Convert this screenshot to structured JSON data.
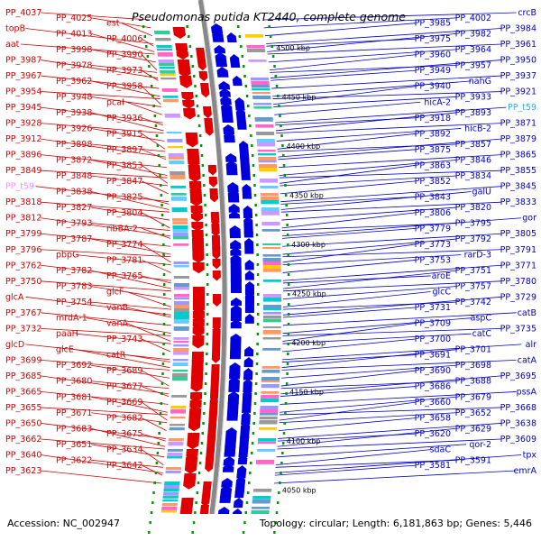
{
  "title": "Pseudomonas putida KT2440, complete genome",
  "footer": {
    "accession": "Accession: NC_002947",
    "topology": "Topology: circular; Length: 6,181,863 bp; Genes: 5,446"
  },
  "colors": {
    "forward_strand": "#e00000",
    "reverse_strand": "#0000dd",
    "left_labels": "#d40000",
    "right_labels": "#0000cc",
    "tRNA_left": "#ff88ff",
    "tRNA_right": "#33aaff",
    "backbone": "#888888",
    "tick_dots": "#009900"
  },
  "kbp_ticks": [
    "4500 kbp",
    "4450 kbp",
    "4400 kbp",
    "4350 kbp",
    "4300 kbp",
    "4250 kbp",
    "4200 kbp",
    "4150 kbp",
    "4100 kbp",
    "4050 kbp"
  ],
  "left_labels": [
    "PP_4037",
    "PP_4025",
    "est",
    "topB",
    "PP_4013",
    "PP_4006",
    "aat",
    "PP_3998",
    "PP_3990",
    "PP_3987",
    "PP_3978",
    "PP_3973",
    "PP_3967",
    "PP_3962",
    "PP_3958",
    "PP_3954",
    "PP_3948",
    "pcaI",
    "PP_3945",
    "PP_3938",
    "PP_3936",
    "PP_3928",
    "PP_3926",
    "PP_3915",
    "PP_3912",
    "PP_3898",
    "PP_3897",
    "PP_3896",
    "PP_3872",
    "PP_3853",
    "PP_3849",
    "PP_3848",
    "PP_3847",
    "PP_t59",
    "PP_3838",
    "PP_3825",
    "PP_3818",
    "PP_3827",
    "PP_3804",
    "PP_3812",
    "PP_3793",
    "ribBA-2",
    "PP_3799",
    "PP_3787",
    "PP_3774",
    "PP_3796",
    "pbpG",
    "PP_3781",
    "PP_3762",
    "PP_3782",
    "PP_3765",
    "PP_3750",
    "PP_3783",
    "glcF",
    "glcA",
    "PP_3754",
    "vanB",
    "PP_3767",
    "mrdA-1",
    "vanA",
    "PP_3732",
    "paaH",
    "PP_3743",
    "glcD",
    "glcE",
    "catR",
    "PP_3699",
    "PP_3692",
    "PP_3689",
    "PP_3685",
    "PP_3680",
    "PP_3677",
    "PP_3665",
    "PP_3681",
    "PP_3669",
    "PP_3655",
    "PP_3671",
    "PP_3682",
    "PP_3650",
    "PP_3683",
    "PP_3675",
    "PP_3662",
    "PP_3651",
    "PP_3634",
    "PP_3640",
    "PP_3622",
    "PP_3642",
    "PP_3623"
  ],
  "right_labels": [
    "crcB",
    "PP_4002",
    "PP_3985",
    "PP_3984",
    "PP_3982",
    "PP_3975",
    "PP_3961",
    "PP_3964",
    "PP_3960",
    "PP_3950",
    "PP_3957",
    "PP_3949",
    "PP_3937",
    "nahG",
    "PP_3940",
    "PP_3921",
    "PP_3933",
    "hicA-2",
    "PP_t59",
    "PP_3893",
    "PP_3918",
    "PP_3871",
    "hicB-2",
    "PP_3892",
    "PP_3879",
    "PP_3857",
    "PP_3875",
    "PP_3865",
    "PP_3846",
    "PP_3863",
    "PP_3855",
    "PP_3834",
    "PP_3852",
    "PP_3845",
    "galU",
    "PP_3843",
    "PP_3833",
    "PP_3820",
    "PP_3806",
    "gor",
    "PP_3795",
    "PP_3779",
    "PP_3805",
    "PP_3792",
    "PP_3773",
    "PP_3791",
    "rarD-3",
    "PP_3753",
    "PP_3771",
    "PP_3751",
    "aroE",
    "PP_3780",
    "PP_3757",
    "glcC",
    "PP_3729",
    "PP_3742",
    "PP_3731",
    "catB",
    "aspC",
    "PP_3709",
    "PP_3735",
    "catC",
    "PP_3700",
    "alr",
    "PP_3701",
    "PP_3691",
    "catA",
    "PP_3698",
    "PP_3690",
    "PP_3695",
    "PP_3688",
    "PP_3686",
    "pssA",
    "PP_3679",
    "PP_3660",
    "PP_3668",
    "PP_3652",
    "PP_3658",
    "PP_3638",
    "PP_3629",
    "PP_3620",
    "PP_3609",
    "qor-2",
    "sdaC",
    "tpx",
    "PP_3591",
    "PP_3581",
    "emrA"
  ]
}
